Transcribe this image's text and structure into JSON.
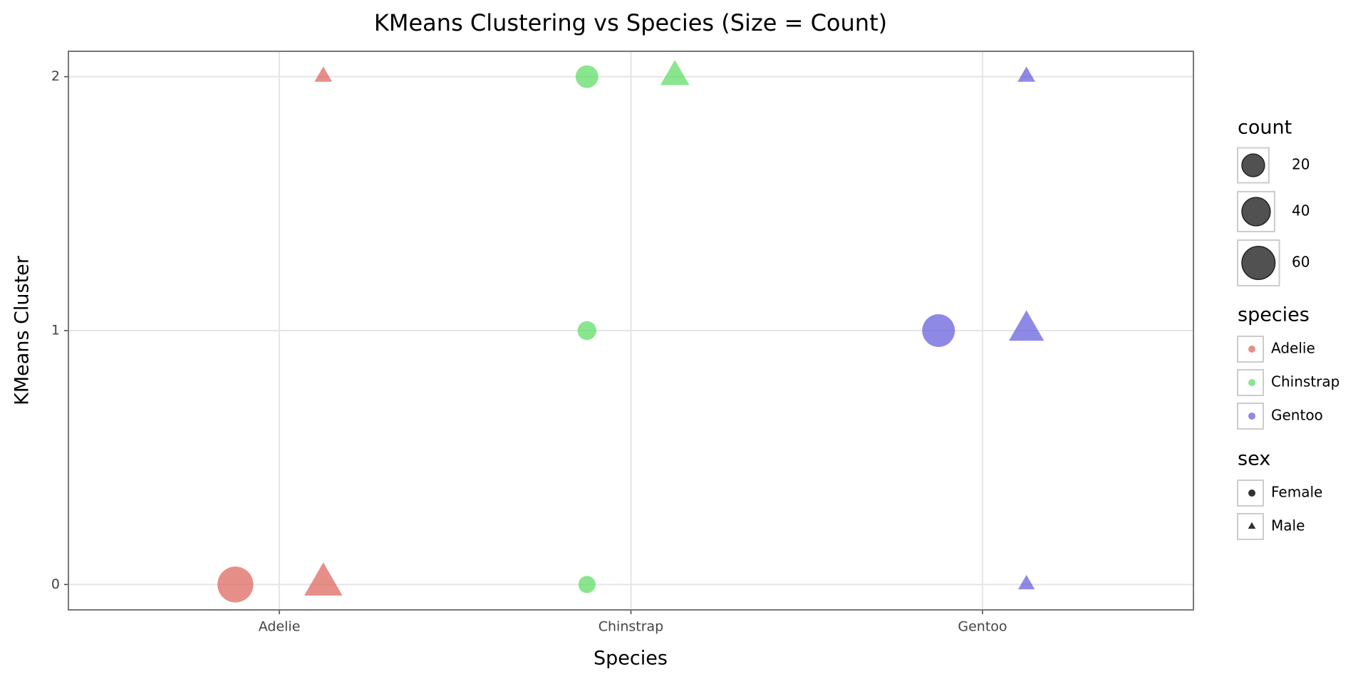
{
  "chart_data": {
    "type": "scatter",
    "title": "KMeans Clustering vs Species (Size = Count)",
    "x_label": "Species",
    "y_label": "KMeans Cluster",
    "categories": [
      "Adelie",
      "Chinstrap",
      "Gentoo"
    ],
    "ylim": [
      -0.1,
      2.1
    ],
    "yticks": [
      0,
      1,
      2
    ],
    "grid": true,
    "series": [
      {
        "name": "Adelie",
        "color": "#db5f57",
        "x": [
          "Adelie",
          "Adelie",
          "Adelie"
        ],
        "sex": [
          "Female",
          "Male",
          "Male"
        ],
        "values": [
          0,
          0,
          2
        ],
        "sizes": [
          73,
          70,
          3
        ]
      },
      {
        "name": "Chinstrap",
        "color": "#57db5f",
        "x": [
          "Chinstrap",
          "Chinstrap",
          "Chinstrap",
          "Chinstrap"
        ],
        "sex": [
          "Female",
          "Female",
          "Female",
          "Male"
        ],
        "values": [
          2,
          1,
          0,
          2
        ],
        "sizes": [
          20,
          9,
          5,
          34
        ]
      },
      {
        "name": "Gentoo",
        "color": "#5f57db",
        "x": [
          "Gentoo",
          "Gentoo",
          "Gentoo",
          "Gentoo"
        ],
        "sex": [
          "Female",
          "Male",
          "Male",
          "Male"
        ],
        "values": [
          1,
          1,
          2,
          0
        ],
        "sizes": [
          58,
          57,
          3,
          1
        ]
      }
    ],
    "size_legend": {
      "title": "count",
      "values": [
        20,
        40,
        60
      ]
    },
    "color_legend_title": "species",
    "shape_legend": {
      "title": "sex",
      "values": [
        "Female",
        "Male"
      ]
    }
  }
}
